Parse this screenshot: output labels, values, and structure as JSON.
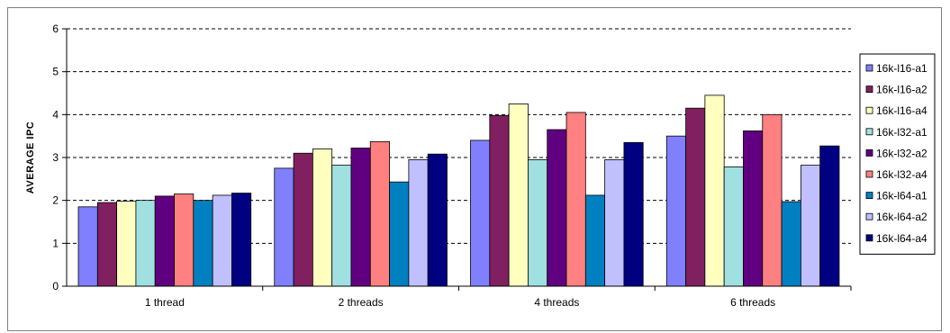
{
  "chart_data": {
    "type": "bar",
    "title": "",
    "xlabel": "",
    "ylabel": "AVERAGE IPC",
    "ylim": [
      0,
      6
    ],
    "yticks": [
      0,
      1,
      2,
      3,
      4,
      5,
      6
    ],
    "grid": "horizontal dashed",
    "legend_position": "right",
    "categories": [
      "1 thread",
      "2 threads",
      "4 threads",
      "6 threads"
    ],
    "series": [
      {
        "name": "16k-l16-a1",
        "color": "#8080ff",
        "values": [
          1.85,
          2.75,
          3.4,
          3.5
        ]
      },
      {
        "name": "16k-l16-a2",
        "color": "#802060",
        "values": [
          1.95,
          3.1,
          3.98,
          4.15
        ]
      },
      {
        "name": "16k-l16-a4",
        "color": "#ffffc0",
        "values": [
          1.98,
          3.2,
          4.25,
          4.45
        ]
      },
      {
        "name": "16k-l32-a1",
        "color": "#a0e0e0",
        "values": [
          2.0,
          2.82,
          2.95,
          2.78
        ]
      },
      {
        "name": "16k-l32-a2",
        "color": "#600080",
        "values": [
          2.1,
          3.22,
          3.65,
          3.62
        ]
      },
      {
        "name": "16k-l32-a4",
        "color": "#ff8080",
        "values": [
          2.15,
          3.37,
          4.05,
          4.0
        ]
      },
      {
        "name": "16k-l64-a1",
        "color": "#0080c0",
        "values": [
          2.0,
          2.43,
          2.12,
          1.97
        ]
      },
      {
        "name": "16k-l64-a2",
        "color": "#c0c0ff",
        "values": [
          2.12,
          2.95,
          2.95,
          2.82
        ]
      },
      {
        "name": "16k-l64-a4",
        "color": "#000080",
        "values": [
          2.17,
          3.08,
          3.35,
          3.27
        ]
      }
    ]
  }
}
